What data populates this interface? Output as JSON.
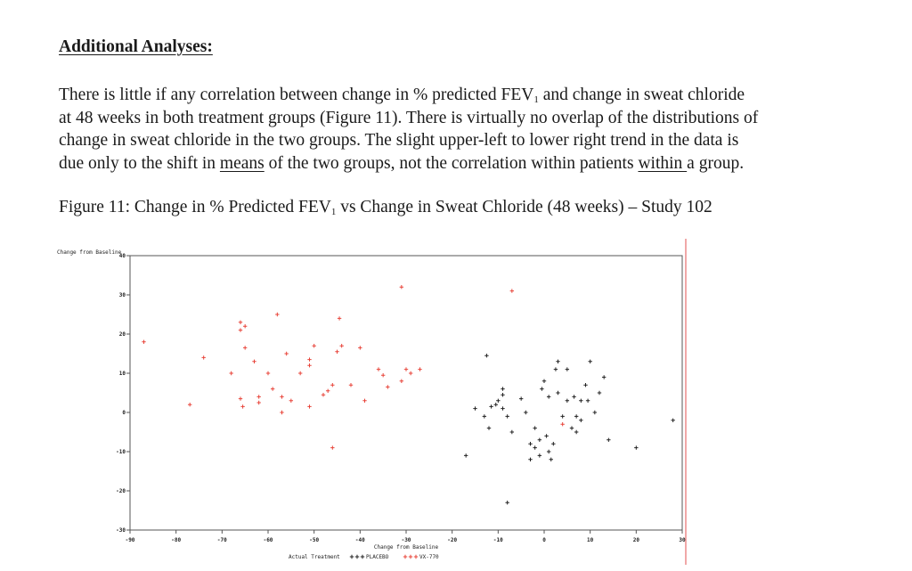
{
  "heading": "Additional Analyses:",
  "paragraph": {
    "l1a": "There is little if any correlation between change in % predicted FEV",
    "l1sub": "1",
    "l1b": " and change in sweat chloride",
    "l2": "at 48 weeks in both treatment groups (Figure 11). There is virtually no overlap of the distributions of",
    "l3": "change in sweat chloride in the two groups. The slight upper-left to lower right trend in the data is",
    "l4a": "due only to the shift in ",
    "l4u1": "means",
    "l4b": " of the two groups, not the correlation within patients ",
    "l4u2": "within ",
    "l4c": "a group."
  },
  "caption": {
    "a": "Figure 11: Change in % Predicted FEV",
    "sub": "1",
    "b": " vs Change in Sweat Chloride (48 weeks) – Study 102"
  },
  "chart_data": {
    "type": "scatter",
    "ylabel": "Change from Baseline",
    "xlabel": "Change from Baseline",
    "xlim": [
      -90,
      30
    ],
    "ylim": [
      -30,
      40
    ],
    "x_ticks": [
      -90,
      -80,
      -70,
      -60,
      -50,
      -40,
      -30,
      -20,
      -10,
      0,
      10,
      20,
      30
    ],
    "y_ticks": [
      -30,
      -20,
      -10,
      0,
      10,
      20,
      30,
      40
    ],
    "legend_title": "Actual Treatment",
    "legend_placement": "bottom-center",
    "series": [
      {
        "name": "PLACEBO",
        "color": "#222222",
        "points": [
          [
            -17,
            -11
          ],
          [
            -12.5,
            14.5
          ],
          [
            -15,
            1
          ],
          [
            -13,
            -1
          ],
          [
            -12,
            -4
          ],
          [
            -11.5,
            1.5
          ],
          [
            -10,
            3
          ],
          [
            -10.5,
            2
          ],
          [
            -9,
            6
          ],
          [
            -9,
            4.5
          ],
          [
            -9,
            1
          ],
          [
            -8,
            -1
          ],
          [
            -7,
            -5
          ],
          [
            -5,
            3.5
          ],
          [
            -4,
            0
          ],
          [
            -3,
            -8
          ],
          [
            -3,
            -12
          ],
          [
            -2,
            -9
          ],
          [
            -2,
            -4
          ],
          [
            -1,
            -7
          ],
          [
            -1,
            -11
          ],
          [
            -0.5,
            6
          ],
          [
            0,
            8
          ],
          [
            0.5,
            -6
          ],
          [
            1,
            4
          ],
          [
            1,
            -10
          ],
          [
            1.5,
            -12
          ],
          [
            2,
            -8
          ],
          [
            2.5,
            11
          ],
          [
            3,
            13
          ],
          [
            3,
            5
          ],
          [
            4,
            -1
          ],
          [
            5,
            11
          ],
          [
            5,
            3
          ],
          [
            6,
            -4
          ],
          [
            6.5,
            4
          ],
          [
            7,
            -1
          ],
          [
            7,
            -5
          ],
          [
            8,
            3
          ],
          [
            8,
            -2
          ],
          [
            9,
            7
          ],
          [
            9.5,
            3
          ],
          [
            10,
            13
          ],
          [
            11,
            0
          ],
          [
            12,
            5
          ],
          [
            13,
            9
          ],
          [
            14,
            -7
          ],
          [
            20,
            -9
          ],
          [
            28,
            -2
          ],
          [
            -8,
            -23
          ]
        ]
      },
      {
        "name": "VX-770",
        "color": "#e8443a",
        "points": [
          [
            -87,
            18
          ],
          [
            -77,
            2
          ],
          [
            -74,
            14
          ],
          [
            -68,
            10
          ],
          [
            -66,
            23
          ],
          [
            -66,
            21
          ],
          [
            -65,
            22
          ],
          [
            -66,
            3.5
          ],
          [
            -65.5,
            1.5
          ],
          [
            -65,
            16.5
          ],
          [
            -63,
            13
          ],
          [
            -62,
            4
          ],
          [
            -62,
            2.5
          ],
          [
            -60,
            10
          ],
          [
            -59,
            6
          ],
          [
            -58,
            25
          ],
          [
            -57,
            4
          ],
          [
            -57,
            0
          ],
          [
            -56,
            15
          ],
          [
            -55,
            3
          ],
          [
            -53,
            10
          ],
          [
            -51,
            1.5
          ],
          [
            -51,
            12
          ],
          [
            -51,
            13.5
          ],
          [
            -50,
            17
          ],
          [
            -48,
            4.5
          ],
          [
            -47,
            5.5
          ],
          [
            -46,
            7
          ],
          [
            -46,
            -9
          ],
          [
            -45,
            15.5
          ],
          [
            -44.5,
            24
          ],
          [
            -44,
            17
          ],
          [
            -42,
            7
          ],
          [
            -40,
            16.5
          ],
          [
            -39,
            3
          ],
          [
            -36,
            11
          ],
          [
            -35,
            9.5
          ],
          [
            -34,
            6.5
          ],
          [
            -31,
            8
          ],
          [
            -31,
            32
          ],
          [
            -30,
            11
          ],
          [
            -29,
            10
          ],
          [
            -27,
            11
          ],
          [
            -7,
            31
          ],
          [
            4,
            -3
          ]
        ]
      }
    ]
  }
}
